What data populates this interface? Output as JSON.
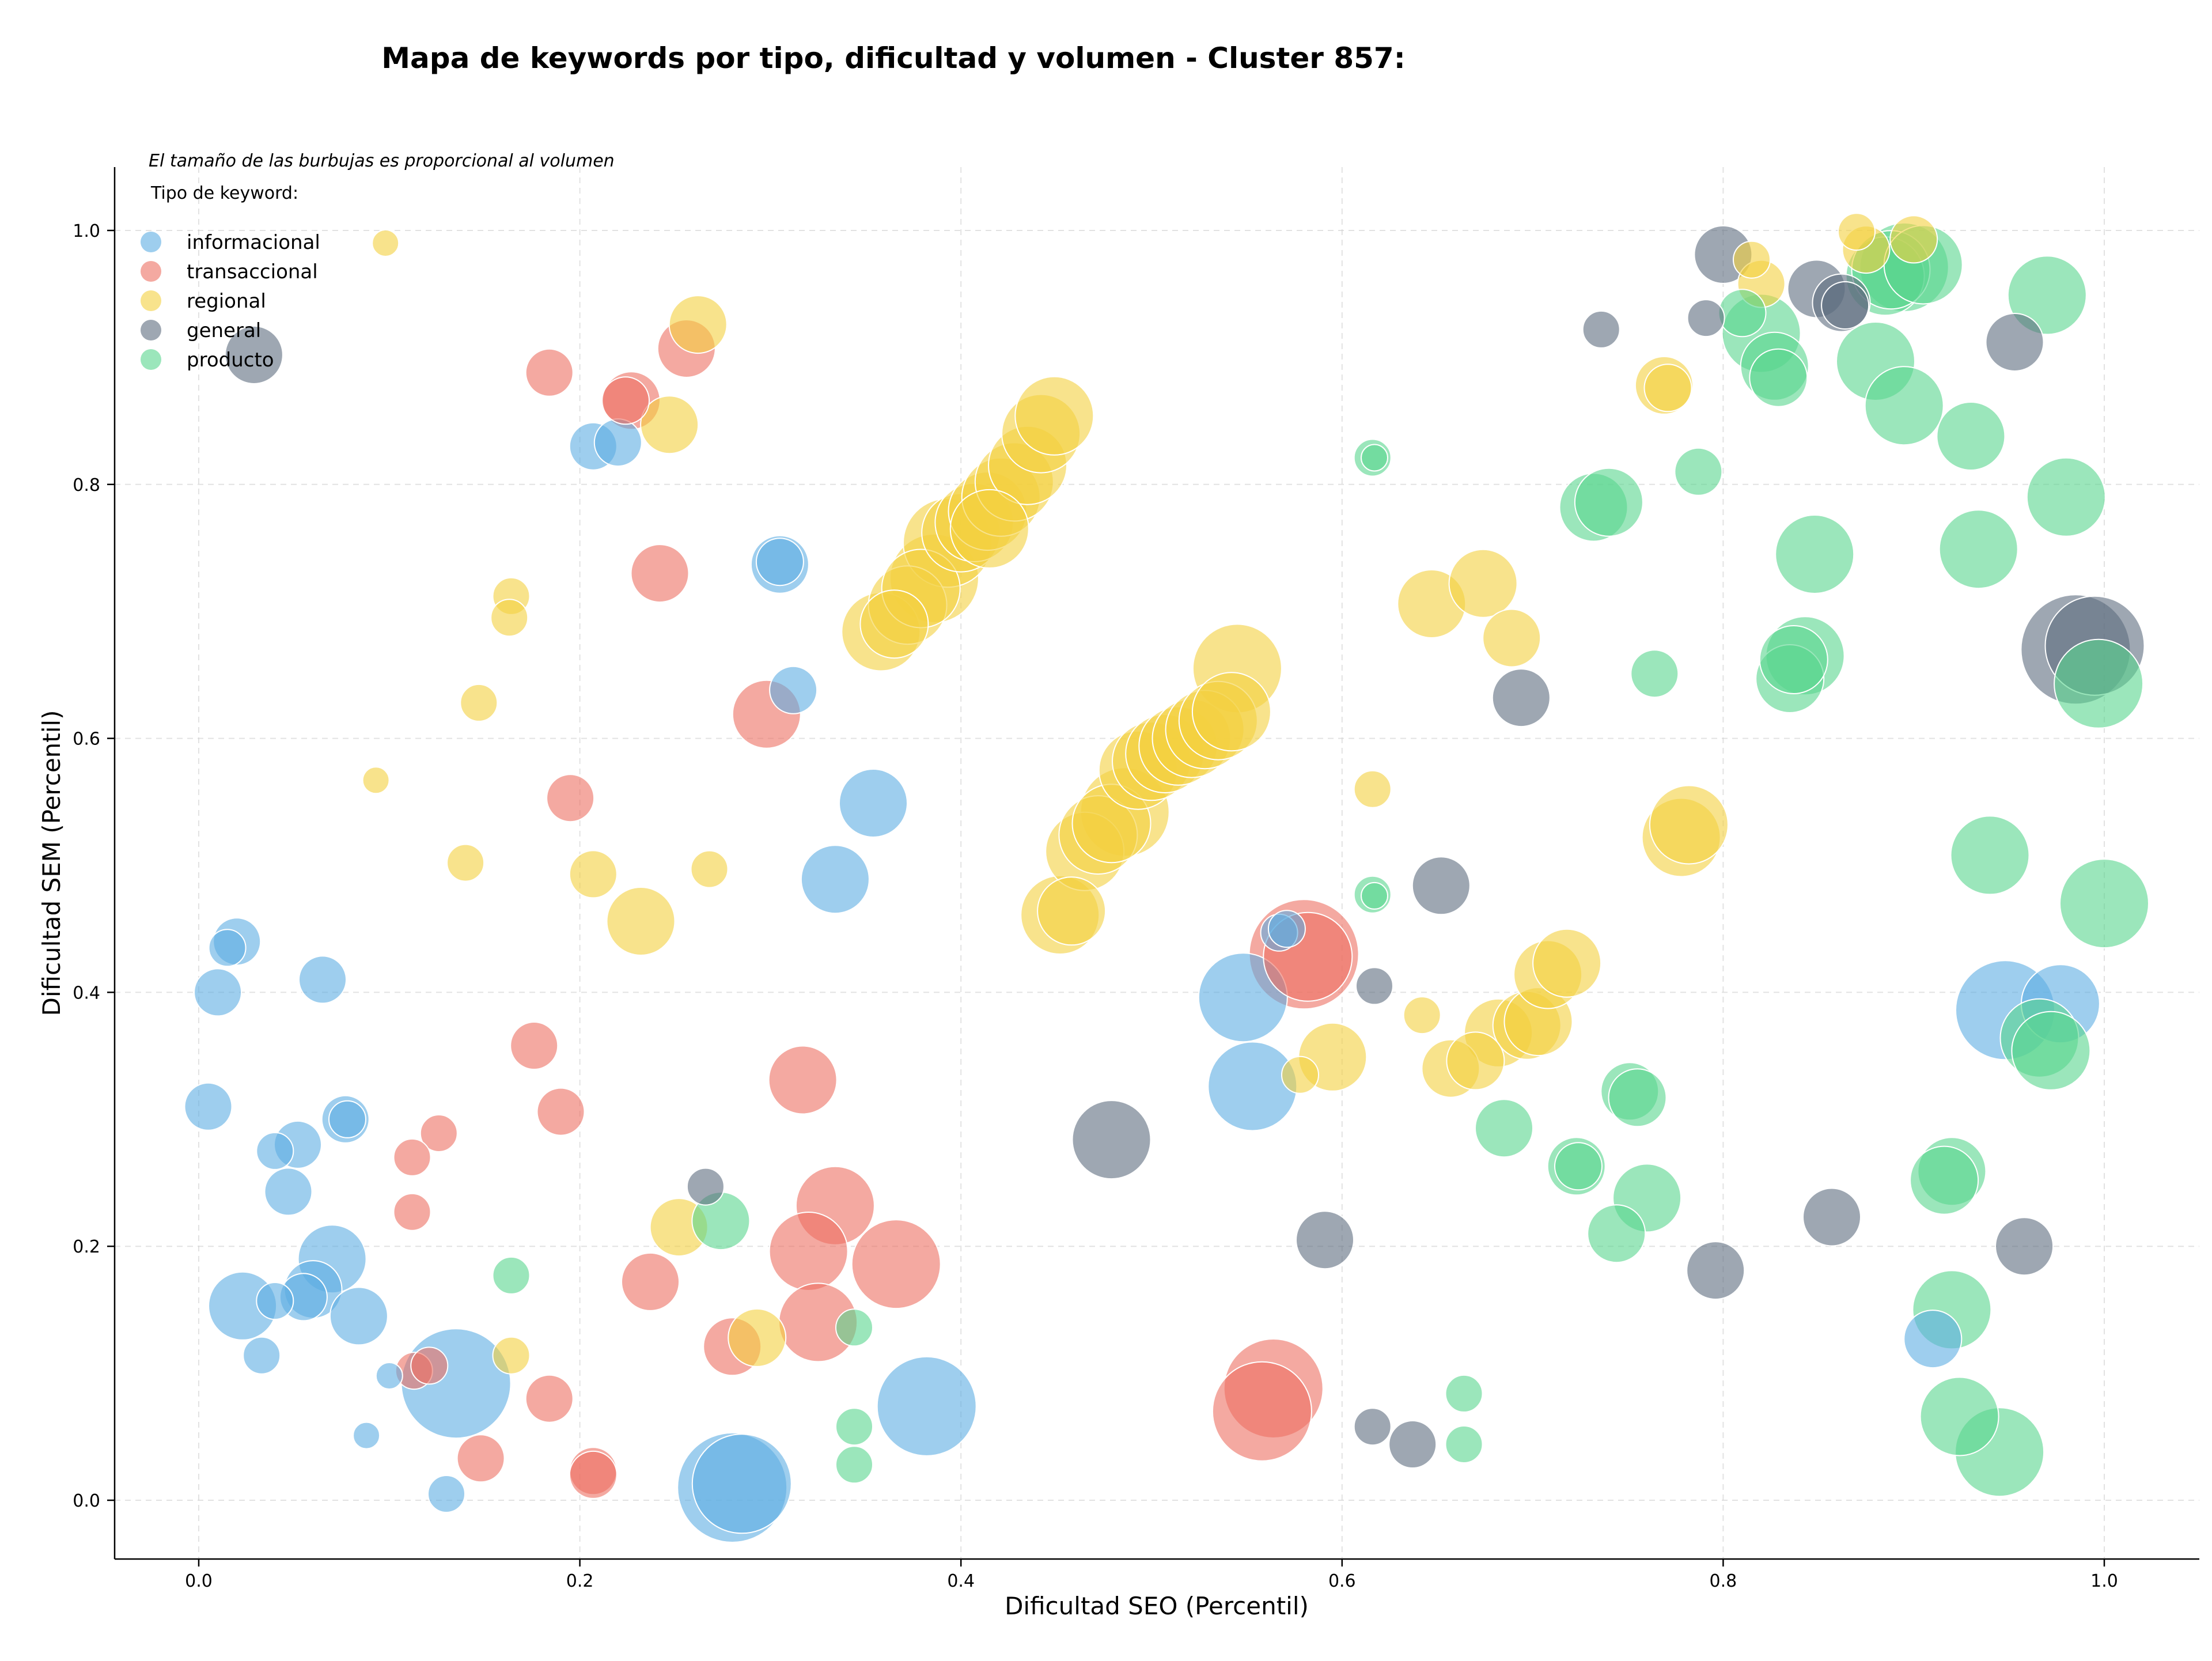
{
  "chart_data": {
    "type": "scatter",
    "title": "Mapa de keywords por tipo, dificultad y volumen - Cluster 857:",
    "note": "El tamaño de las burbujas es proporcional al volumen",
    "legend_title": "Tipo de keyword:",
    "legend_position": "top-left",
    "xlabel": "Dificultad SEO (Percentil)",
    "ylabel": "Dificultad SEM (Percentil)",
    "xlim": [
      -0.045,
      1.05
    ],
    "ylim": [
      -0.045,
      1.05
    ],
    "xticks": [
      "0.0",
      "0.2",
      "0.4",
      "0.6",
      "0.8",
      "1.0"
    ],
    "yticks": [
      "0.0",
      "0.2",
      "0.4",
      "0.6",
      "0.8",
      "1.0"
    ],
    "xtick_values": [
      0,
      0.2,
      0.4,
      0.6,
      0.8,
      1.0
    ],
    "ytick_values": [
      0,
      0.2,
      0.4,
      0.6,
      0.8,
      1.0
    ],
    "grid": true,
    "series": [
      {
        "name": "informacional",
        "color": "#5DADE2",
        "points": [
          [
            0.02,
            0.44,
            3
          ],
          [
            0.015,
            0.435,
            2
          ],
          [
            0.01,
            0.4,
            3
          ],
          [
            0.065,
            0.41,
            3
          ],
          [
            0.005,
            0.31,
            3
          ],
          [
            0.077,
            0.3,
            3
          ],
          [
            0.078,
            0.3,
            2
          ],
          [
            0.052,
            0.28,
            3
          ],
          [
            0.04,
            0.275,
            2
          ],
          [
            0.047,
            0.243,
            3
          ],
          [
            0.07,
            0.19,
            5
          ],
          [
            0.06,
            0.166,
            4
          ],
          [
            0.055,
            0.16,
            3
          ],
          [
            0.023,
            0.153,
            5
          ],
          [
            0.04,
            0.157,
            2
          ],
          [
            0.084,
            0.145,
            4
          ],
          [
            0.033,
            0.114,
            2
          ],
          [
            0.1,
            0.098,
            1
          ],
          [
            0.088,
            0.051,
            1
          ],
          [
            0.13,
            0.005,
            2
          ],
          [
            0.135,
            0.092,
            9
          ],
          [
            0.28,
            0.01,
            9
          ],
          [
            0.285,
            0.013,
            8
          ],
          [
            0.382,
            0.074,
            8
          ],
          [
            0.305,
            0.737,
            4
          ],
          [
            0.305,
            0.739,
            3
          ],
          [
            0.312,
            0.638,
            3
          ],
          [
            0.207,
            0.83,
            3
          ],
          [
            0.22,
            0.833,
            3
          ],
          [
            0.354,
            0.549,
            5
          ],
          [
            0.334,
            0.489,
            5
          ],
          [
            0.548,
            0.396,
            7
          ],
          [
            0.553,
            0.326,
            7
          ],
          [
            0.567,
            0.447,
            2
          ],
          [
            0.571,
            0.45,
            2
          ],
          [
            0.948,
            0.386,
            8
          ],
          [
            0.977,
            0.391,
            6
          ],
          [
            0.91,
            0.127,
            4
          ]
        ]
      },
      {
        "name": "transaccional",
        "color": "#EC7063",
        "points": [
          [
            0.184,
            0.888,
            3
          ],
          [
            0.227,
            0.866,
            4
          ],
          [
            0.224,
            0.866,
            3
          ],
          [
            0.256,
            0.907,
            4
          ],
          [
            0.242,
            0.73,
            4
          ],
          [
            0.298,
            0.619,
            5
          ],
          [
            0.195,
            0.553,
            3
          ],
          [
            0.176,
            0.358,
            3
          ],
          [
            0.19,
            0.306,
            3
          ],
          [
            0.126,
            0.289,
            2
          ],
          [
            0.112,
            0.27,
            2
          ],
          [
            0.112,
            0.227,
            2
          ],
          [
            0.317,
            0.331,
            5
          ],
          [
            0.334,
            0.232,
            6
          ],
          [
            0.32,
            0.196,
            6
          ],
          [
            0.366,
            0.186,
            7
          ],
          [
            0.237,
            0.172,
            4
          ],
          [
            0.325,
            0.14,
            6
          ],
          [
            0.28,
            0.121,
            4
          ],
          [
            0.184,
            0.08,
            3
          ],
          [
            0.148,
            0.033,
            3
          ],
          [
            0.113,
            0.102,
            2
          ],
          [
            0.121,
            0.106,
            2
          ],
          [
            0.207,
            0.023,
            3
          ],
          [
            0.207,
            0.02,
            3
          ],
          [
            0.58,
            0.43,
            9
          ],
          [
            0.582,
            0.428,
            7
          ],
          [
            0.564,
            0.088,
            8
          ],
          [
            0.558,
            0.07,
            8
          ]
        ]
      },
      {
        "name": "regional",
        "color": "#F4D03F",
        "points": [
          [
            0.098,
            0.99,
            1
          ],
          [
            0.262,
            0.926,
            4
          ],
          [
            0.247,
            0.847,
            4
          ],
          [
            0.164,
            0.712,
            2
          ],
          [
            0.163,
            0.695,
            2
          ],
          [
            0.147,
            0.628,
            2
          ],
          [
            0.093,
            0.567,
            1
          ],
          [
            0.14,
            0.502,
            2
          ],
          [
            0.207,
            0.493,
            3
          ],
          [
            0.232,
            0.456,
            5
          ],
          [
            0.268,
            0.497,
            2
          ],
          [
            0.252,
            0.215,
            4
          ],
          [
            0.293,
            0.128,
            4
          ],
          [
            0.164,
            0.114,
            2
          ],
          [
            0.358,
            0.684,
            6
          ],
          [
            0.365,
            0.69,
            5
          ],
          [
            0.372,
            0.705,
            6
          ],
          [
            0.379,
            0.718,
            6
          ],
          [
            0.386,
            0.726,
            7
          ],
          [
            0.393,
            0.754,
            7
          ],
          [
            0.4,
            0.762,
            6
          ],
          [
            0.407,
            0.77,
            6
          ],
          [
            0.414,
            0.779,
            6
          ],
          [
            0.421,
            0.79,
            6
          ],
          [
            0.428,
            0.802,
            6
          ],
          [
            0.435,
            0.815,
            6
          ],
          [
            0.442,
            0.84,
            6
          ],
          [
            0.449,
            0.854,
            6
          ],
          [
            0.415,
            0.765,
            6
          ],
          [
            0.452,
            0.461,
            6
          ],
          [
            0.458,
            0.464,
            5
          ],
          [
            0.465,
            0.511,
            6
          ],
          [
            0.472,
            0.524,
            6
          ],
          [
            0.479,
            0.533,
            6
          ],
          [
            0.486,
            0.542,
            7
          ],
          [
            0.493,
            0.575,
            6
          ],
          [
            0.5,
            0.582,
            6
          ],
          [
            0.507,
            0.588,
            6
          ],
          [
            0.514,
            0.594,
            6
          ],
          [
            0.521,
            0.6,
            6
          ],
          [
            0.528,
            0.607,
            6
          ],
          [
            0.535,
            0.614,
            6
          ],
          [
            0.542,
            0.621,
            6
          ],
          [
            0.545,
            0.655,
            7
          ],
          [
            0.616,
            0.56,
            2
          ],
          [
            0.595,
            0.349,
            5
          ],
          [
            0.578,
            0.335,
            2
          ],
          [
            0.647,
            0.706,
            5
          ],
          [
            0.674,
            0.722,
            5
          ],
          [
            0.689,
            0.679,
            4
          ],
          [
            0.642,
            0.382,
            2
          ],
          [
            0.657,
            0.34,
            4
          ],
          [
            0.67,
            0.346,
            4
          ],
          [
            0.682,
            0.368,
            5
          ],
          [
            0.697,
            0.374,
            5
          ],
          [
            0.703,
            0.377,
            5
          ],
          [
            0.708,
            0.414,
            5
          ],
          [
            0.718,
            0.423,
            5
          ],
          [
            0.769,
            0.878,
            4
          ],
          [
            0.771,
            0.876,
            3
          ],
          [
            0.778,
            0.522,
            6
          ],
          [
            0.782,
            0.532,
            6
          ],
          [
            0.815,
            0.977,
            2
          ],
          [
            0.82,
            0.958,
            3
          ],
          [
            0.87,
            0.999,
            2
          ],
          [
            0.875,
            0.985,
            3
          ],
          [
            0.9,
            0.993,
            3
          ]
        ]
      },
      {
        "name": "general",
        "color": "#5D6D7E",
        "points": [
          [
            0.029,
            0.902,
            4
          ],
          [
            0.266,
            0.247,
            2
          ],
          [
            0.479,
            0.284,
            6
          ],
          [
            0.591,
            0.205,
            4
          ],
          [
            0.617,
            0.405,
            2
          ],
          [
            0.652,
            0.484,
            4
          ],
          [
            0.694,
            0.632,
            4
          ],
          [
            0.616,
            0.058,
            2
          ],
          [
            0.637,
            0.044,
            3
          ],
          [
            0.736,
            0.922,
            2
          ],
          [
            0.791,
            0.931,
            2
          ],
          [
            0.8,
            0.981,
            4
          ],
          [
            0.849,
            0.954,
            4
          ],
          [
            0.862,
            0.943,
            4
          ],
          [
            0.864,
            0.941,
            3
          ],
          [
            0.953,
            0.912,
            4
          ],
          [
            0.857,
            0.223,
            4
          ],
          [
            0.796,
            0.181,
            4
          ],
          [
            0.958,
            0.2,
            4
          ],
          [
            0.985,
            0.67,
            9
          ],
          [
            0.995,
            0.673,
            8
          ]
        ]
      },
      {
        "name": "producto",
        "color": "#58D68D",
        "points": [
          [
            0.164,
            0.177,
            2
          ],
          [
            0.274,
            0.22,
            4
          ],
          [
            0.344,
            0.136,
            2
          ],
          [
            0.344,
            0.058,
            2
          ],
          [
            0.344,
            0.028,
            2
          ],
          [
            0.616,
            0.821,
            2
          ],
          [
            0.617,
            0.821,
            1
          ],
          [
            0.616,
            0.477,
            2
          ],
          [
            0.617,
            0.476,
            1
          ],
          [
            0.664,
            0.084,
            2
          ],
          [
            0.664,
            0.044,
            2
          ],
          [
            0.685,
            0.293,
            4
          ],
          [
            0.723,
            0.263,
            4
          ],
          [
            0.724,
            0.263,
            3
          ],
          [
            0.744,
            0.21,
            4
          ],
          [
            0.751,
            0.322,
            4
          ],
          [
            0.755,
            0.317,
            4
          ],
          [
            0.76,
            0.238,
            5
          ],
          [
            0.732,
            0.782,
            5
          ],
          [
            0.74,
            0.786,
            5
          ],
          [
            0.764,
            0.651,
            3
          ],
          [
            0.787,
            0.81,
            3
          ],
          [
            0.81,
            0.935,
            3
          ],
          [
            0.82,
            0.919,
            6
          ],
          [
            0.827,
            0.893,
            5
          ],
          [
            0.829,
            0.884,
            4
          ],
          [
            0.835,
            0.647,
            5
          ],
          [
            0.837,
            0.662,
            5
          ],
          [
            0.843,
            0.665,
            6
          ],
          [
            0.848,
            0.745,
            6
          ],
          [
            0.88,
            0.897,
            6
          ],
          [
            0.885,
            0.964,
            6
          ],
          [
            0.888,
            0.969,
            6
          ],
          [
            0.895,
            0.971,
            7
          ],
          [
            0.905,
            0.973,
            6
          ],
          [
            0.895,
            0.862,
            6
          ],
          [
            0.93,
            0.838,
            5
          ],
          [
            0.934,
            0.749,
            6
          ],
          [
            0.94,
            0.508,
            6
          ],
          [
            0.92,
            0.259,
            5
          ],
          [
            0.916,
            0.252,
            5
          ],
          [
            0.92,
            0.15,
            6
          ],
          [
            0.924,
            0.066,
            6
          ],
          [
            0.945,
            0.038,
            7
          ],
          [
            0.966,
            0.364,
            6
          ],
          [
            0.972,
            0.354,
            6
          ],
          [
            0.97,
            0.949,
            6
          ],
          [
            0.98,
            0.79,
            6
          ],
          [
            0.997,
            0.643,
            7
          ],
          [
            1.0,
            0.47,
            7
          ]
        ]
      }
    ]
  }
}
